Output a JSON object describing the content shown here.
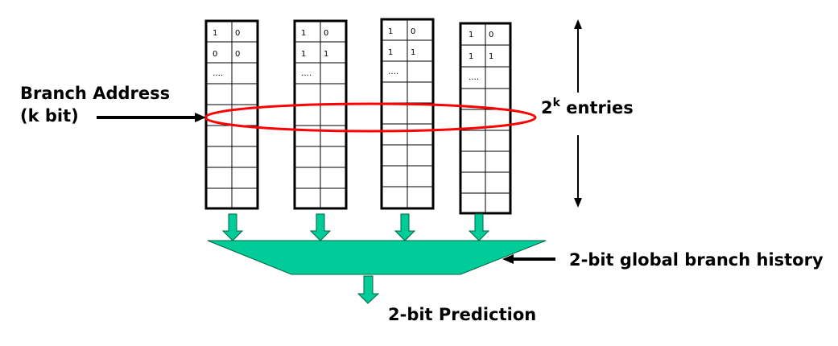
{
  "labels": {
    "branch_address_line1": "Branch Address",
    "branch_address_line2": "(k bit)",
    "entries_base": "2",
    "entries_exp": "k",
    "entries_suffix": " entries",
    "global_history": "2-bit global branch history",
    "prediction": "2-bit Prediction"
  },
  "tables": [
    {
      "rows": [
        [
          "1",
          "0"
        ],
        [
          "0",
          "0"
        ],
        [
          "….",
          ""
        ]
      ]
    },
    {
      "rows": [
        [
          "1",
          "0"
        ],
        [
          "1",
          "1"
        ],
        [
          "….",
          ""
        ]
      ]
    },
    {
      "rows": [
        [
          "1",
          "0"
        ],
        [
          "1",
          "1"
        ],
        [
          "….",
          ""
        ]
      ]
    },
    {
      "rows": [
        [
          "1",
          "0"
        ],
        [
          "1",
          "1"
        ],
        [
          "….",
          ""
        ]
      ]
    }
  ],
  "colors": {
    "mux_fill": "#00cc99",
    "ellipse_stroke": "#ff0000",
    "line": "#000000"
  }
}
